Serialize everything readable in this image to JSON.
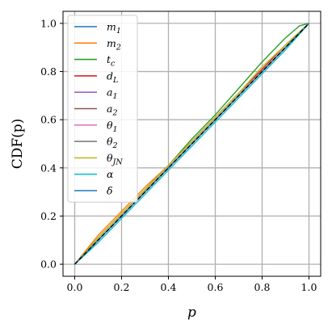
{
  "chart_data": {
    "type": "line",
    "title": "",
    "xlabel": "p",
    "ylabel": "CDF(p)",
    "xlim": [
      -0.05,
      1.05
    ],
    "ylim": [
      -0.05,
      1.05
    ],
    "xticks": [
      0.0,
      0.2,
      0.4,
      0.6,
      0.8,
      1.0
    ],
    "yticks": [
      0.0,
      0.2,
      0.4,
      0.6,
      0.8,
      1.0
    ],
    "xtick_labels": [
      "0.0",
      "0.2",
      "0.4",
      "0.6",
      "0.8",
      "1.0"
    ],
    "ytick_labels": [
      "0.0",
      "0.2",
      "0.4",
      "0.6",
      "0.8",
      "1.0"
    ],
    "grid": true,
    "legend_position": "upper-left",
    "reference": {
      "name": "",
      "style": "dashed",
      "color": "#000000",
      "points": [
        [
          0,
          0
        ],
        [
          1,
          1
        ]
      ]
    },
    "series": [
      {
        "name": "m_1",
        "label_base": "m",
        "label_sub": "1",
        "color": "#1f77b4",
        "points": [
          [
            0,
            0
          ],
          [
            0.1,
            0.1
          ],
          [
            0.2,
            0.2
          ],
          [
            0.3,
            0.3
          ],
          [
            0.4,
            0.4
          ],
          [
            0.5,
            0.5
          ],
          [
            0.6,
            0.6
          ],
          [
            0.7,
            0.7
          ],
          [
            0.8,
            0.8
          ],
          [
            0.9,
            0.9
          ],
          [
            1,
            1
          ]
        ]
      },
      {
        "name": "m_2",
        "label_base": "m",
        "label_sub": "2",
        "color": "#ff7f0e",
        "points": [
          [
            0,
            0
          ],
          [
            0.1,
            0.12
          ],
          [
            0.2,
            0.22
          ],
          [
            0.3,
            0.32
          ],
          [
            0.4,
            0.41
          ],
          [
            0.5,
            0.51
          ],
          [
            0.6,
            0.61
          ],
          [
            0.7,
            0.71
          ],
          [
            0.8,
            0.81
          ],
          [
            0.9,
            0.91
          ],
          [
            1,
            1
          ]
        ]
      },
      {
        "name": "t_c",
        "label_base": "t",
        "label_sub": "c",
        "color": "#2ca02c",
        "points": [
          [
            0,
            0
          ],
          [
            0.1,
            0.11
          ],
          [
            0.2,
            0.21
          ],
          [
            0.3,
            0.31
          ],
          [
            0.4,
            0.41
          ],
          [
            0.5,
            0.52
          ],
          [
            0.6,
            0.62
          ],
          [
            0.7,
            0.73
          ],
          [
            0.8,
            0.84
          ],
          [
            0.9,
            0.94
          ],
          [
            0.96,
            0.99
          ],
          [
            1,
            1
          ]
        ]
      },
      {
        "name": "d_L",
        "label_base": "d",
        "label_sub": "L",
        "color": "#d62728",
        "points": [
          [
            0,
            0
          ],
          [
            0.1,
            0.11
          ],
          [
            0.2,
            0.21
          ],
          [
            0.3,
            0.31
          ],
          [
            0.4,
            0.41
          ],
          [
            0.5,
            0.51
          ],
          [
            0.6,
            0.61
          ],
          [
            0.7,
            0.71
          ],
          [
            0.8,
            0.81
          ],
          [
            0.9,
            0.91
          ],
          [
            1,
            1
          ]
        ]
      },
      {
        "name": "a_1",
        "label_base": "a",
        "label_sub": "1",
        "color": "#9467bd",
        "points": [
          [
            0,
            0
          ],
          [
            0.1,
            0.1
          ],
          [
            0.2,
            0.2
          ],
          [
            0.3,
            0.3
          ],
          [
            0.4,
            0.4
          ],
          [
            0.5,
            0.5
          ],
          [
            0.6,
            0.6
          ],
          [
            0.7,
            0.7
          ],
          [
            0.8,
            0.8
          ],
          [
            0.9,
            0.9
          ],
          [
            1,
            1
          ]
        ]
      },
      {
        "name": "a_2",
        "label_base": "a",
        "label_sub": "2",
        "color": "#8c564b",
        "points": [
          [
            0,
            0
          ],
          [
            0.1,
            0.1
          ],
          [
            0.2,
            0.2
          ],
          [
            0.3,
            0.3
          ],
          [
            0.4,
            0.4
          ],
          [
            0.5,
            0.5
          ],
          [
            0.6,
            0.6
          ],
          [
            0.7,
            0.7
          ],
          [
            0.8,
            0.8
          ],
          [
            0.9,
            0.9
          ],
          [
            1,
            1
          ]
        ]
      },
      {
        "name": "θ_1",
        "label_base": "θ",
        "label_sub": "1",
        "color": "#e377c2",
        "points": [
          [
            0,
            0
          ],
          [
            0.1,
            0.1
          ],
          [
            0.2,
            0.2
          ],
          [
            0.3,
            0.3
          ],
          [
            0.4,
            0.4
          ],
          [
            0.5,
            0.5
          ],
          [
            0.6,
            0.6
          ],
          [
            0.7,
            0.7
          ],
          [
            0.8,
            0.8
          ],
          [
            0.9,
            0.9
          ],
          [
            1,
            1
          ]
        ]
      },
      {
        "name": "θ_2",
        "label_base": "θ",
        "label_sub": "2",
        "color": "#7f7f7f",
        "points": [
          [
            0,
            0
          ],
          [
            0.1,
            0.1
          ],
          [
            0.2,
            0.2
          ],
          [
            0.3,
            0.3
          ],
          [
            0.4,
            0.4
          ],
          [
            0.5,
            0.5
          ],
          [
            0.6,
            0.6
          ],
          [
            0.7,
            0.7
          ],
          [
            0.8,
            0.8
          ],
          [
            0.9,
            0.9
          ],
          [
            1,
            1
          ]
        ]
      },
      {
        "name": "θ_JN",
        "label_base": "θ",
        "label_sub": "JN",
        "color": "#bcbd22",
        "points": [
          [
            0,
            0
          ],
          [
            0.1,
            0.11
          ],
          [
            0.2,
            0.21
          ],
          [
            0.3,
            0.31
          ],
          [
            0.4,
            0.41
          ],
          [
            0.5,
            0.51
          ],
          [
            0.6,
            0.61
          ],
          [
            0.7,
            0.71
          ],
          [
            0.8,
            0.82
          ],
          [
            0.9,
            0.91
          ],
          [
            1,
            1
          ]
        ]
      },
      {
        "name": "α",
        "label_base": "α",
        "label_sub": "",
        "color": "#17becf",
        "points": [
          [
            0,
            0
          ],
          [
            0.1,
            0.09
          ],
          [
            0.2,
            0.19
          ],
          [
            0.3,
            0.29
          ],
          [
            0.4,
            0.39
          ],
          [
            0.5,
            0.49
          ],
          [
            0.6,
            0.59
          ],
          [
            0.7,
            0.69
          ],
          [
            0.8,
            0.79
          ],
          [
            0.9,
            0.89
          ],
          [
            1,
            1
          ]
        ]
      },
      {
        "name": "δ",
        "label_base": "δ",
        "label_sub": "",
        "color": "#1f77b4",
        "points": [
          [
            0,
            0
          ],
          [
            0.1,
            0.1
          ],
          [
            0.2,
            0.2
          ],
          [
            0.3,
            0.3
          ],
          [
            0.4,
            0.4
          ],
          [
            0.5,
            0.5
          ],
          [
            0.6,
            0.6
          ],
          [
            0.7,
            0.7
          ],
          [
            0.8,
            0.8
          ],
          [
            0.9,
            0.9
          ],
          [
            1,
            1
          ]
        ]
      }
    ]
  }
}
